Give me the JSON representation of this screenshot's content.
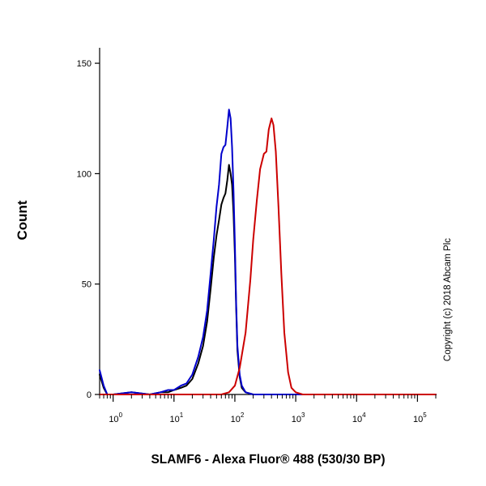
{
  "chart_data": {
    "type": "line",
    "xlabel": "SLAMF6 - Alexa Fluor® 488 (530/30 BP)",
    "ylabel": "Count",
    "x_scale": "log",
    "xlim": [
      0.6,
      200000
    ],
    "ylim": [
      0,
      157
    ],
    "grid": false,
    "y_ticks": [
      0,
      50,
      100,
      150
    ],
    "x_ticks": [
      {
        "base": "10",
        "exp": "0",
        "value": 1
      },
      {
        "base": "10",
        "exp": "1",
        "value": 10
      },
      {
        "base": "10",
        "exp": "2",
        "value": 100
      },
      {
        "base": "10",
        "exp": "3",
        "value": 1000
      },
      {
        "base": "10",
        "exp": "4",
        "value": 10000
      },
      {
        "base": "10",
        "exp": "5",
        "value": 100000
      }
    ],
    "annotation": "Copyright (c) 2018 Abcam Plc",
    "series": [
      {
        "color": "#000000",
        "x": [
          0.6,
          0.7,
          0.8,
          1,
          2,
          4,
          6,
          8,
          10,
          13,
          16,
          20,
          25,
          30,
          35,
          40,
          45,
          50,
          55,
          60,
          65,
          70,
          75,
          80,
          85,
          90,
          95,
          100,
          105,
          110,
          120,
          130,
          150,
          200,
          1000,
          200000
        ],
        "y": [
          9,
          3,
          0,
          0,
          1,
          0,
          1,
          1,
          2,
          3,
          4,
          7,
          14,
          22,
          33,
          48,
          62,
          72,
          79,
          86,
          89,
          91,
          97,
          104,
          100,
          95,
          82,
          63,
          40,
          20,
          8,
          3,
          1,
          0,
          0,
          0
        ]
      },
      {
        "color": "#0000cc",
        "x": [
          0.6,
          0.7,
          0.8,
          1,
          2,
          4,
          6,
          8,
          10,
          13,
          16,
          20,
          25,
          30,
          35,
          40,
          45,
          50,
          55,
          60,
          65,
          70,
          75,
          80,
          85,
          90,
          95,
          100,
          105,
          110,
          120,
          130,
          150,
          200,
          1000,
          200000
        ],
        "y": [
          11,
          4,
          0,
          0,
          1,
          0,
          1,
          2,
          2,
          4,
          5,
          9,
          17,
          26,
          38,
          55,
          70,
          85,
          95,
          109,
          112,
          113,
          121,
          129,
          125,
          112,
          92,
          68,
          42,
          22,
          9,
          4,
          1,
          0,
          0,
          0
        ]
      },
      {
        "color": "#cc0000",
        "x": [
          0.6,
          60,
          80,
          100,
          120,
          150,
          180,
          200,
          230,
          260,
          300,
          330,
          360,
          400,
          430,
          470,
          520,
          580,
          650,
          750,
          850,
          1000,
          1300,
          200000
        ],
        "y": [
          0,
          0,
          1,
          4,
          12,
          28,
          52,
          70,
          88,
          102,
          109,
          110,
          120,
          125,
          122,
          110,
          85,
          55,
          28,
          10,
          3,
          1,
          0,
          0
        ]
      }
    ]
  }
}
